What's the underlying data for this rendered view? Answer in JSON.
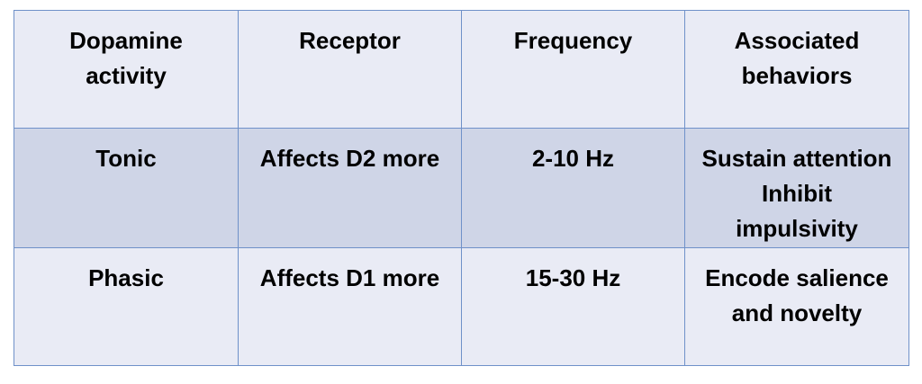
{
  "table": {
    "headers": [
      [
        "Dopamine",
        "activity"
      ],
      [
        "Receptor"
      ],
      [
        "Frequency"
      ],
      [
        "Associated",
        "behaviors"
      ]
    ],
    "rows": [
      {
        "activity": "Tonic",
        "receptor": "Affects D2 more",
        "frequency": "2-10 Hz",
        "behaviors": [
          "Sustain attention",
          "Inhibit",
          "impulsivity"
        ]
      },
      {
        "activity": "Phasic",
        "receptor": "Affects D1 more",
        "frequency": "15-30 Hz",
        "behaviors": [
          "Encode salience",
          "and novelty"
        ]
      }
    ]
  }
}
